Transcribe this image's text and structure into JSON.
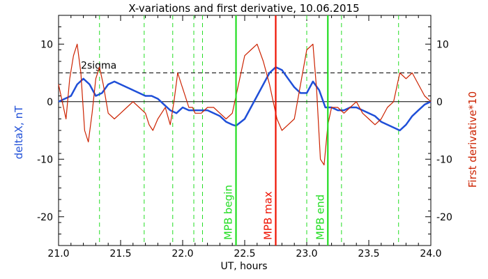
{
  "chart_data": {
    "type": "line",
    "title": "X-variations and first derivative, 10.06.2015",
    "xlabel": "UT, hours",
    "ylabel_left": "deltaX, nT",
    "ylabel_right": "First derivative*10",
    "xlim": [
      21.0,
      24.0
    ],
    "ylim": [
      -25,
      15
    ],
    "xticks": [
      "21.0",
      "21.5",
      "22.0",
      "22.5",
      "23.0",
      "23.5",
      "24.0"
    ],
    "yticks": [
      "10",
      "0",
      "-10",
      "-20"
    ],
    "grid": false,
    "colors": {
      "deltaX": "#1f4fd8",
      "derivative": "#cc2200",
      "mpb_begin_end": "#22dd22",
      "mpb_max": "#ee1100",
      "axis": "#000000"
    },
    "series": [
      {
        "key": "deltaX",
        "x": [
          21.0,
          21.05,
          21.1,
          21.15,
          21.2,
          21.25,
          21.3,
          21.35,
          21.4,
          21.45,
          21.5,
          21.55,
          21.6,
          21.65,
          21.7,
          21.75,
          21.8,
          21.85,
          21.9,
          21.95,
          22.0,
          22.05,
          22.1,
          22.15,
          22.2,
          22.25,
          22.3,
          22.35,
          22.4,
          22.43,
          22.5,
          22.55,
          22.6,
          22.65,
          22.7,
          22.75,
          22.8,
          22.85,
          22.9,
          22.95,
          23.0,
          23.05,
          23.1,
          23.15,
          23.2,
          23.25,
          23.3,
          23.35,
          23.4,
          23.45,
          23.5,
          23.55,
          23.6,
          23.65,
          23.7,
          23.75,
          23.8,
          23.85,
          23.9,
          23.95,
          24.0
        ],
        "y": [
          0,
          0.5,
          1,
          3,
          4,
          3,
          1,
          1.5,
          3,
          3.5,
          3,
          2.5,
          2,
          1.5,
          1,
          1,
          0.5,
          -0.5,
          -1.5,
          -2,
          -1,
          -1.5,
          -1.5,
          -1.5,
          -1.5,
          -2,
          -2.5,
          -3.5,
          -4,
          -4.2,
          -3,
          -1,
          1,
          3,
          5,
          6,
          5.5,
          4,
          2.5,
          1.5,
          1.5,
          3.5,
          2,
          -1,
          -1,
          -1.5,
          -1.5,
          -1,
          -1,
          -1.5,
          -2,
          -2.5,
          -3.5,
          -4,
          -4.5,
          -5,
          -4,
          -2.5,
          -1.5,
          -0.5,
          0
        ]
      },
      {
        "key": "derivative",
        "x": [
          21.0,
          21.03,
          21.06,
          21.09,
          21.12,
          21.15,
          21.18,
          21.21,
          21.24,
          21.27,
          21.3,
          21.33,
          21.36,
          21.4,
          21.45,
          21.5,
          21.55,
          21.6,
          21.65,
          21.7,
          21.73,
          21.76,
          21.8,
          21.83,
          21.86,
          21.9,
          21.93,
          21.96,
          21.99,
          22.02,
          22.05,
          22.08,
          22.1,
          22.15,
          22.2,
          22.25,
          22.3,
          22.35,
          22.4,
          22.45,
          22.5,
          22.55,
          22.6,
          22.65,
          22.7,
          22.73,
          22.76,
          22.8,
          22.85,
          22.9,
          22.95,
          23.0,
          23.05,
          23.08,
          23.11,
          23.14,
          23.17,
          23.2,
          23.25,
          23.3,
          23.35,
          23.4,
          23.45,
          23.5,
          23.55,
          23.6,
          23.65,
          23.7,
          23.75,
          23.8,
          23.85,
          23.9,
          23.95,
          24.0
        ],
        "y": [
          3,
          0,
          -3,
          4,
          8,
          10,
          5,
          -5,
          -7,
          -2,
          4,
          6,
          3,
          -2,
          -3,
          -2,
          -1,
          0,
          -1,
          -2,
          -4,
          -5,
          -3,
          -2,
          -1,
          -4,
          0,
          5,
          3,
          1,
          -1,
          -1,
          -2,
          -2,
          -1,
          -1,
          -2,
          -3,
          -2,
          3,
          8,
          9,
          10,
          7,
          3,
          0,
          -3,
          -5,
          -4,
          -3,
          3,
          9,
          10,
          2,
          -10,
          -11,
          -4,
          -1,
          -1,
          -2,
          -1,
          0,
          -2,
          -3,
          -4,
          -3,
          -1,
          0,
          5,
          4,
          5,
          3,
          1,
          0
        ]
      }
    ],
    "guide_lines": [
      {
        "x": 22.43,
        "label": "MPB begin",
        "style": "solid",
        "color_key": "mpb_begin_end"
      },
      {
        "x": 22.75,
        "label": "MPB max",
        "style": "solid",
        "color_key": "mpb_max"
      },
      {
        "x": 23.17,
        "label": "MPB end",
        "style": "solid",
        "color_key": "mpb_begin_end"
      }
    ],
    "dashed_markers_x": [
      21.33,
      21.69,
      21.92,
      22.09,
      22.16,
      23.0,
      23.28,
      23.74
    ],
    "reference_lines": [
      {
        "y": 5,
        "label": "2sigma",
        "style": "dashed"
      },
      {
        "y": 0,
        "label": "",
        "style": "solid"
      }
    ]
  }
}
